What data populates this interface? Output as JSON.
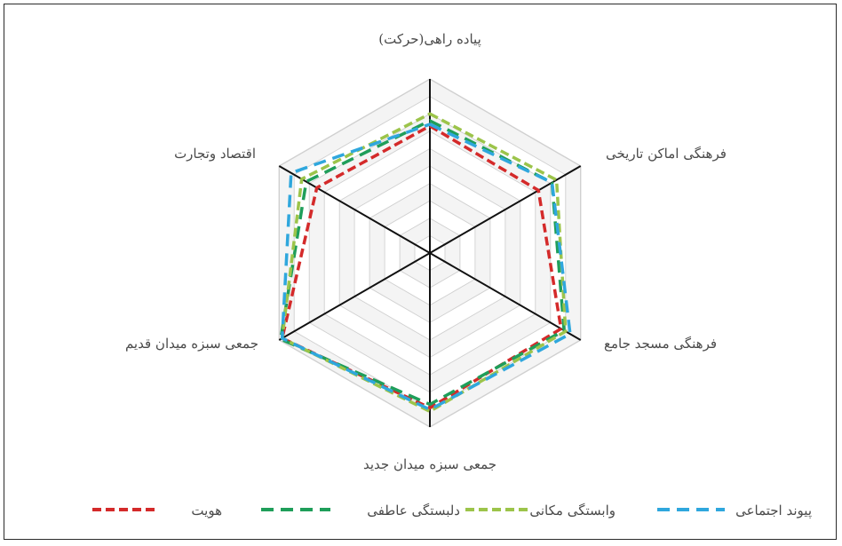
{
  "chart_data": {
    "type": "radar",
    "axes": [
      "پیاده راهی(حرکت)",
      "فرهنگی اماکن تاریخی",
      "فرهنگی مسجد جامع",
      "جمعی سبزه میدان جدید",
      "جمعی سبزه میدان قدیم",
      "اقتصاد وتجارت"
    ],
    "scale": {
      "min": 0,
      "max": 10,
      "rings": 10
    },
    "series": [
      {
        "name": "هویت",
        "color": "#d42a2a",
        "dash": "10,5",
        "values": [
          7.3,
          7.2,
          8.7,
          8.9,
          9.8,
          7.5
        ]
      },
      {
        "name": "دلبستگی عاطفی",
        "color": "#1f9e5a",
        "dash": "14,8",
        "values": [
          7.6,
          8.1,
          8.9,
          8.7,
          9.9,
          8.2
        ]
      },
      {
        "name": "وابستگی مکانی",
        "color": "#9cc44a",
        "dash": "10,5",
        "values": [
          8.0,
          8.4,
          9.0,
          9.1,
          9.8,
          8.5
        ]
      },
      {
        "name": "پیوند اجتماعی",
        "color": "#2fa7dd",
        "dash": "14,8",
        "values": [
          7.4,
          8.1,
          9.3,
          9.0,
          9.8,
          9.2
        ]
      }
    ],
    "legend_position": "bottom"
  }
}
